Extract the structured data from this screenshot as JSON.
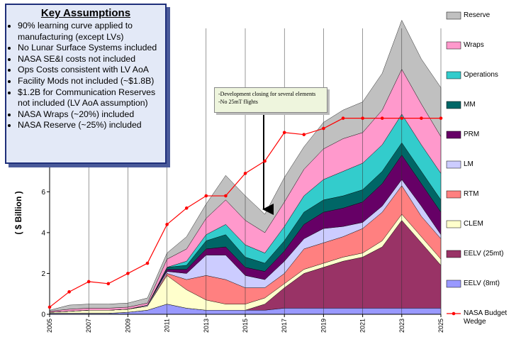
{
  "chart_data": {
    "type": "area",
    "y_label": "( $ Billion )",
    "x": [
      2005,
      2006,
      2007,
      2008,
      2009,
      2010,
      2011,
      2012,
      2013,
      2014,
      2015,
      2016,
      2017,
      2018,
      2019,
      2020,
      2021,
      2022,
      2023,
      2024,
      2025
    ],
    "xlim": [
      2005,
      2025
    ],
    "xticks": [
      2005,
      2007,
      2009,
      2011,
      2013,
      2015,
      2017,
      2019,
      2021,
      2023,
      2025
    ],
    "ylim": [
      0,
      14
    ],
    "yticks": [
      0,
      2,
      4,
      6
    ],
    "grid": true,
    "series": [
      {
        "name": "EELV (8mt)",
        "color": "#9999ff",
        "values": [
          0.05,
          0.05,
          0.05,
          0.05,
          0.1,
          0.2,
          0.5,
          0.3,
          0.2,
          0.2,
          0.2,
          0.2,
          0.3,
          0.3,
          0.3,
          0.3,
          0.3,
          0.3,
          0.3,
          0.3,
          0.3
        ]
      },
      {
        "name": "EELV (25mt)",
        "color": "#993366",
        "values": [
          0,
          0,
          0,
          0,
          0,
          0,
          0,
          0,
          0,
          0,
          0,
          0.3,
          1.0,
          1.7,
          2.0,
          2.3,
          2.5,
          3.0,
          4.3,
          3.2,
          2.1
        ]
      },
      {
        "name": "CLEM",
        "color": "#ffffcc",
        "values": [
          0.05,
          0.1,
          0.15,
          0.15,
          0.15,
          0.2,
          1.4,
          0.9,
          0.5,
          0.3,
          0.3,
          0.3,
          0.2,
          0.2,
          0.2,
          0.2,
          0.2,
          0.3,
          0.3,
          0.3,
          0.3
        ]
      },
      {
        "name": "RTM",
        "color": "#ff8080",
        "values": [
          0,
          0,
          0,
          0,
          0,
          0,
          0.1,
          0.5,
          1.2,
          1.2,
          0.8,
          0.5,
          0.5,
          1.0,
          1.0,
          1.0,
          1.2,
          1.4,
          1.4,
          1.0,
          1.0
        ]
      },
      {
        "name": "LM",
        "color": "#ccccff",
        "values": [
          0,
          0,
          0,
          0,
          0,
          0.05,
          0.1,
          0.3,
          1.0,
          1.2,
          0.6,
          0.4,
          0.6,
          0.5,
          0.7,
          0.5,
          0.3,
          0.3,
          0.3,
          0.5,
          0.2
        ]
      },
      {
        "name": "PRM",
        "color": "#660066",
        "values": [
          0,
          0,
          0,
          0,
          0,
          0,
          0.1,
          0.2,
          0.3,
          0.4,
          0.4,
          0.4,
          0.5,
          0.7,
          0.8,
          0.9,
          1.0,
          1.1,
          1.2,
          1.1,
          1.1
        ]
      },
      {
        "name": "MM",
        "color": "#006666",
        "values": [
          0,
          0,
          0,
          0,
          0,
          0,
          0.1,
          0.2,
          0.4,
          0.6,
          0.5,
          0.4,
          0.5,
          0.6,
          0.6,
          0.6,
          0.6,
          0.6,
          0.6,
          0.6,
          0.6
        ]
      },
      {
        "name": "Operations",
        "color": "#33cccc",
        "values": [
          0,
          0,
          0,
          0,
          0,
          0,
          0,
          0.2,
          0.3,
          0.5,
          0.6,
          0.5,
          0.7,
          0.8,
          1.0,
          1.2,
          1.3,
          1.3,
          1.4,
          1.3,
          1.3
        ]
      },
      {
        "name": "Wraps",
        "color": "#ff99cc",
        "values": [
          0.05,
          0.1,
          0.1,
          0.1,
          0.1,
          0.1,
          0.4,
          0.6,
          0.8,
          1.2,
          1.2,
          1.0,
          1.2,
          1.3,
          1.5,
          1.6,
          1.5,
          1.7,
          2.2,
          2.0,
          1.8
        ]
      },
      {
        "name": "Reserve",
        "color": "#c0c0c0",
        "values": [
          0.05,
          0.2,
          0.2,
          0.2,
          0.2,
          0.25,
          0.3,
          0.6,
          0.7,
          1.2,
          1.2,
          0.9,
          1.2,
          1.1,
          1.3,
          1.4,
          1.5,
          1.8,
          2.4,
          2.2,
          2.4
        ]
      },
      {
        "name": "NASA Budget Wedge",
        "type": "line",
        "color": "#ff0000",
        "values": [
          0.35,
          1.1,
          1.6,
          1.5,
          2.0,
          2.5,
          4.4,
          5.2,
          5.8,
          5.8,
          6.9,
          7.5,
          8.9,
          8.8,
          9.1,
          9.6,
          9.6,
          9.6,
          9.6,
          9.6,
          9.6
        ]
      }
    ],
    "annotation": [
      "-Development closing for several elements",
      "-No 25mT flights"
    ]
  },
  "assumptions": {
    "title": "Key Assumptions",
    "items": [
      "90% learning curve applied to manufacturing (except LVs)",
      "No Lunar Surface Systems included",
      "NASA SE&I costs not included",
      "Ops Costs consistent with LV AoA",
      "Facility Mods not included (~$1.8B)",
      "$1.2B for Communication Reserves not included (LV AoA assumption)",
      "NASA Wraps (~20%) included",
      "NASA Reserve (~25%) included"
    ]
  }
}
